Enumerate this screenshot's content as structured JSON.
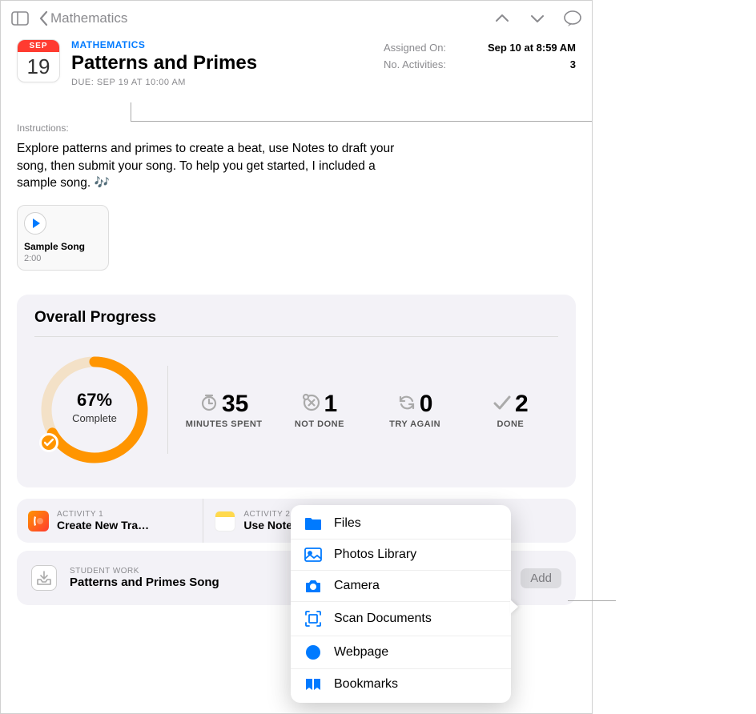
{
  "toolbar": {
    "back_label": "Mathematics"
  },
  "header": {
    "calendar": {
      "month": "SEP",
      "day": "19"
    },
    "subject": "MATHEMATICS",
    "title": "Patterns and Primes",
    "due": "DUE: SEP 19 AT 10:00 AM",
    "meta": {
      "assigned_label": "Assigned On:",
      "assigned_value": "Sep 10 at 8:59 AM",
      "activities_label": "No. Activities:",
      "activities_value": "3"
    }
  },
  "instructions": {
    "label": "Instructions:",
    "body": "Explore patterns and primes to create a beat, use Notes to draft your song, then submit your song. To help you get started, I included a sample song. 🎶"
  },
  "attachment": {
    "title": "Sample Song",
    "duration": "2:00"
  },
  "progress": {
    "title": "Overall Progress",
    "percent": "67%",
    "complete_label": "Complete",
    "donut": {
      "percent_value": 67,
      "track_color": "#f3e1c7",
      "fill_color": "#ff9500",
      "stroke_width": 13,
      "radius": 60
    },
    "stats": [
      {
        "icon": "clock",
        "value": "35",
        "label": "MINUTES SPENT"
      },
      {
        "icon": "notdone",
        "value": "1",
        "label": "NOT DONE"
      },
      {
        "icon": "refresh",
        "value": "0",
        "label": "TRY AGAIN"
      },
      {
        "icon": "check",
        "value": "2",
        "label": "DONE"
      }
    ]
  },
  "activities": [
    {
      "label": "ACTIVITY 1",
      "title": "Create New Tra…",
      "icon": "garageband"
    },
    {
      "label": "ACTIVITY 2",
      "title": "Use Notes for 3…",
      "icon": "notes"
    }
  ],
  "student_work": {
    "label": "STUDENT WORK",
    "title": "Patterns and Primes Song",
    "add_button": "Add"
  },
  "popover": {
    "items": [
      {
        "icon": "folder",
        "label": "Files"
      },
      {
        "icon": "photo",
        "label": "Photos Library"
      },
      {
        "icon": "camera",
        "label": "Camera"
      },
      {
        "icon": "scan",
        "label": "Scan Documents"
      },
      {
        "icon": "safari",
        "label": "Webpage"
      },
      {
        "icon": "bookmark",
        "label": "Bookmarks"
      }
    ]
  },
  "colors": {
    "accent": "#007aff",
    "orange": "#ff9500",
    "red": "#ff3b30",
    "grey": "#8a8a8e",
    "card_bg": "#f3f2f7"
  }
}
